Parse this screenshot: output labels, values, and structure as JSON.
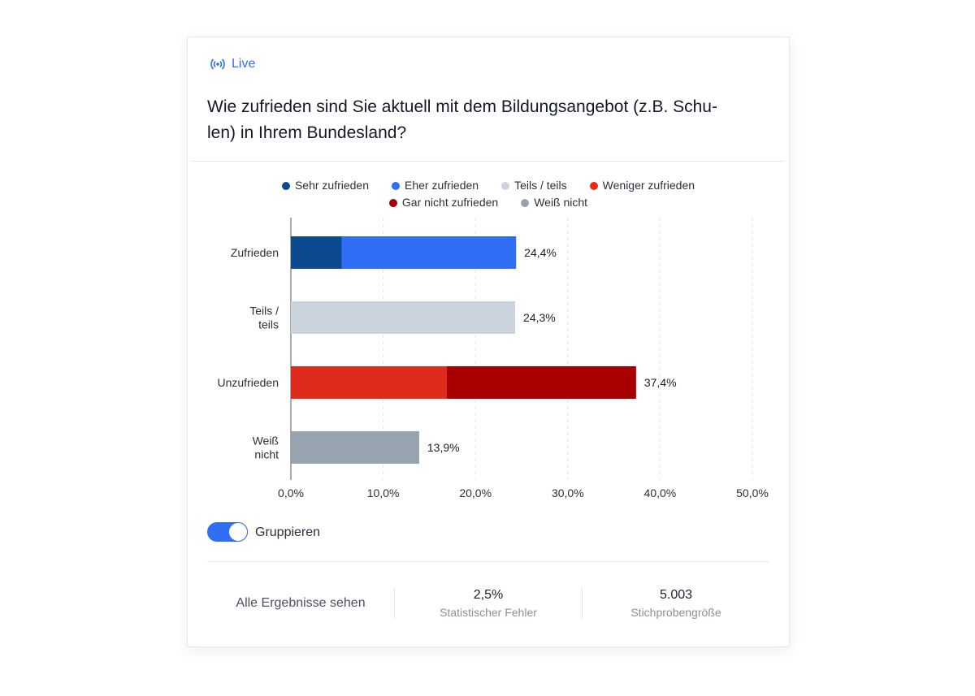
{
  "live_label": "Live",
  "question": "Wie zufrieden sind Sie aktuell mit dem Bildungsangebot (z.B. Schu-len) in Ihrem Bundesland?",
  "question_lines": [
    "Wie zufrieden sind Sie aktuell mit dem Bildungsangebot (z.B. Schu-",
    "len) in Ihrem Bundesland?"
  ],
  "legend": [
    {
      "label": "Sehr zufrieden",
      "color": "#0b4a8f"
    },
    {
      "label": "Eher zufrieden",
      "color": "#2f6ef5"
    },
    {
      "label": "Teils / teils",
      "color": "#cbd3dd"
    },
    {
      "label": "Weniger zufrieden",
      "color": "#e02a1b"
    },
    {
      "label": "Gar nicht zufrieden",
      "color": "#a80000"
    },
    {
      "label": "Weiß nicht",
      "color": "#97a4b0"
    }
  ],
  "chart_data": {
    "type": "bar",
    "orientation": "horizontal",
    "stacked": true,
    "categories": [
      [
        "Zufrieden"
      ],
      [
        "Teils /",
        "teils"
      ],
      [
        "Unzufrieden"
      ],
      [
        "Weiß",
        "nicht"
      ]
    ],
    "bars": [
      {
        "segments": [
          {
            "series": "Sehr zufrieden",
            "value": 5.5
          },
          {
            "series": "Eher zufrieden",
            "value": 18.9
          }
        ],
        "total_label": "24,4%"
      },
      {
        "segments": [
          {
            "series": "Teils / teils",
            "value": 24.3
          }
        ],
        "total_label": "24,3%"
      },
      {
        "segments": [
          {
            "series": "Weniger zufrieden",
            "value": 16.9
          },
          {
            "series": "Gar nicht zufrieden",
            "value": 20.5
          }
        ],
        "total_label": "37,4%"
      },
      {
        "segments": [
          {
            "series": "Weiß nicht",
            "value": 13.9
          }
        ],
        "total_label": "13,9%"
      }
    ],
    "xlim": [
      0,
      50
    ],
    "xticks": [
      0,
      10,
      20,
      30,
      40,
      50
    ],
    "xtick_labels": [
      "0,0%",
      "10,0%",
      "20,0%",
      "30,0%",
      "40,0%",
      "50,0%"
    ],
    "grid": "vertical dashed",
    "legend_position": "top"
  },
  "toggle": {
    "label": "Gruppieren",
    "on": true
  },
  "footer": {
    "all_results": "Alle Ergebnisse sehen",
    "error_value": "2,5%",
    "error_label": "Statistischer Fehler",
    "sample_value": "5.003",
    "sample_label": "Stichprobengröße"
  }
}
